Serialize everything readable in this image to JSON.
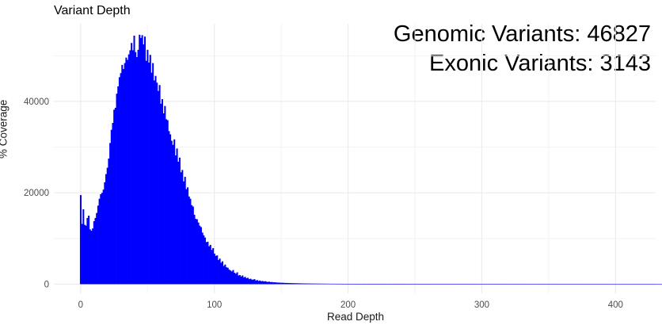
{
  "chart_data": {
    "type": "bar",
    "title": "Variant Depth",
    "xlabel": "Read Depth",
    "ylabel": "% Coverage",
    "xlim": [
      -20,
      430
    ],
    "ylim": [
      -2000,
      57000
    ],
    "x_ticks": [
      0,
      100,
      200,
      300,
      400
    ],
    "y_ticks": [
      0,
      20000,
      40000
    ],
    "grid": true,
    "bar_color": "#0000ff",
    "annotations": [
      "Genomic Variants: 46827",
      "Exonic Variants: 3143"
    ],
    "values": [
      19500,
      13200,
      16400,
      13000,
      12800,
      14500,
      15000,
      12000,
      11700,
      12200,
      13800,
      14500,
      15600,
      17200,
      18700,
      19700,
      20000,
      20700,
      22300,
      24100,
      25500,
      27500,
      30900,
      33800,
      35300,
      38200,
      38600,
      41700,
      43300,
      45300,
      46200,
      48000,
      47100,
      48400,
      49600,
      49100,
      50300,
      51200,
      52800,
      51200,
      54400,
      50800,
      49700,
      51300,
      54600,
      53900,
      54500,
      52500,
      54200,
      48900,
      51300,
      48500,
      50200,
      46300,
      48400,
      44600,
      45600,
      44100,
      42300,
      43600,
      39500,
      40500,
      37400,
      39000,
      36100,
      35900,
      33500,
      32800,
      31400,
      30500,
      31700,
      28200,
      29700,
      26800,
      27700,
      24500,
      25000,
      22500,
      23500,
      20800,
      21200,
      19200,
      18700,
      17300,
      17000,
      15200,
      14300,
      14200,
      13500,
      12800,
      12500,
      11300,
      10700,
      10200,
      9200,
      9300,
      8300,
      8600,
      7500,
      7900,
      6700,
      6200,
      6300,
      5300,
      5600,
      4700,
      5000,
      4000,
      4300,
      3700,
      3600,
      3200,
      3000,
      2800,
      3100,
      2500,
      2300,
      2600,
      1900,
      2000,
      1700,
      1900,
      1500,
      1600,
      1300,
      1400,
      1100,
      1200,
      1000,
      1000,
      1100,
      800,
      900,
      700,
      800,
      650,
      700,
      600,
      650,
      550,
      500,
      550,
      450,
      480,
      400,
      420,
      380,
      360,
      350,
      330,
      310,
      320,
      290,
      280,
      270,
      260,
      250,
      240,
      230,
      225,
      215,
      205,
      200,
      190,
      185,
      175,
      170,
      165,
      160,
      155,
      150,
      145,
      140,
      138,
      135,
      130,
      128,
      125,
      122,
      120,
      118,
      115,
      112,
      110,
      108,
      105,
      103,
      100,
      98,
      96,
      94,
      92,
      90,
      88,
      86,
      85,
      83,
      82,
      80,
      78,
      77,
      75,
      74,
      72,
      71,
      70,
      68,
      67,
      66,
      65,
      64,
      62,
      61,
      60,
      59,
      58,
      57,
      56,
      55,
      54,
      53,
      52,
      51,
      50,
      50,
      49,
      48,
      47,
      46,
      46,
      45,
      44,
      43,
      43,
      42,
      41,
      41,
      40,
      39,
      39,
      38,
      38,
      37,
      36,
      36,
      35,
      35,
      34,
      34,
      33,
      33,
      32,
      32,
      31,
      31,
      30,
      30,
      29,
      29,
      28,
      28,
      28,
      27,
      27,
      26,
      26,
      26,
      25,
      25,
      25,
      24,
      24,
      24,
      23,
      23,
      23,
      22,
      22,
      22,
      21,
      21,
      21,
      21,
      20,
      20,
      20,
      19,
      19,
      19,
      19,
      18,
      18,
      18,
      18,
      17,
      17,
      17,
      17,
      17,
      16,
      16,
      16,
      16,
      16,
      15,
      15,
      15,
      15,
      15,
      14,
      14,
      14,
      14,
      14,
      14,
      13,
      13,
      13,
      13,
      13,
      13,
      12,
      12,
      12,
      12,
      12,
      12,
      12,
      11,
      11,
      11,
      11,
      11,
      11,
      11,
      11,
      10,
      10,
      10,
      10,
      10,
      10,
      10,
      10,
      10,
      9,
      9,
      9,
      9,
      9,
      9,
      9,
      9,
      9,
      9,
      8,
      8,
      8,
      8,
      8,
      8,
      8,
      8,
      8,
      8,
      8,
      7,
      7,
      7,
      7,
      7,
      7,
      7,
      7,
      7,
      7,
      7,
      7,
      7,
      6,
      6,
      6,
      6,
      6,
      6,
      6,
      6,
      6,
      6,
      6,
      6,
      6,
      6,
      6,
      6,
      5,
      5,
      5,
      5,
      5,
      5,
      5,
      5,
      5,
      5,
      5,
      5,
      5,
      5,
      5,
      5,
      5,
      5,
      5,
      4,
      4,
      4,
      4,
      4,
      4,
      4,
      4,
      4,
      4,
      4,
      4,
      4,
      4,
      4,
      4,
      4,
      4,
      4,
      4,
      4,
      4,
      4,
      4,
      4,
      4,
      4,
      3,
      3,
      3,
      3,
      3
    ]
  }
}
